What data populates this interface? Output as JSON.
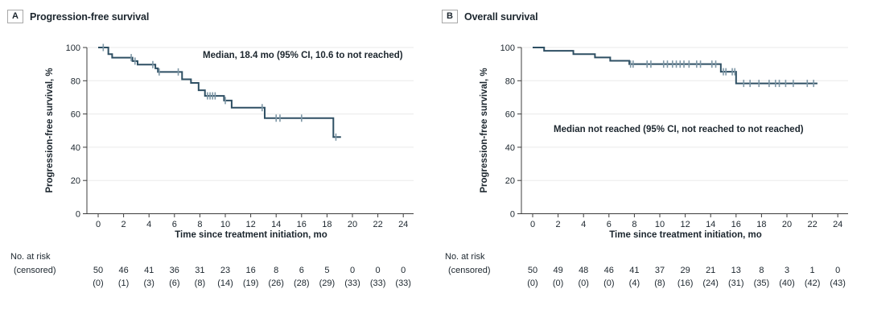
{
  "chart_data": [
    {
      "type": "line",
      "subtype": "kaplan-meier-step",
      "panel_label": "A",
      "title": "Progression-free survival",
      "annotation": "Median, 18.4 mo (95% CI, 10.6 to not reached)",
      "xlabel": "Time since treatment initiation, mo",
      "ylabel": "Progression-free survival, %",
      "xlim": [
        0,
        24
      ],
      "ylim": [
        0,
        100
      ],
      "x_ticks": [
        0,
        2,
        4,
        6,
        8,
        10,
        12,
        14,
        16,
        18,
        20,
        22,
        24
      ],
      "y_ticks": [
        0,
        20,
        40,
        60,
        80,
        100
      ],
      "grid": "horizontal",
      "legend": "none",
      "line_color": "#2e4f63",
      "censor_color": "#7e97a6",
      "steps": [
        [
          0,
          100
        ],
        [
          0.8,
          96.0
        ],
        [
          1.1,
          93.9
        ],
        [
          2.7,
          91.8
        ],
        [
          3.1,
          89.7
        ],
        [
          4.5,
          87.5
        ],
        [
          4.7,
          85.3
        ],
        [
          6.6,
          80.9
        ],
        [
          7.3,
          78.7
        ],
        [
          7.9,
          74.3
        ],
        [
          8.4,
          70.9
        ],
        [
          9.9,
          68.1
        ],
        [
          10.5,
          63.8
        ],
        [
          13.1,
          57.5
        ],
        [
          18.5,
          46.1
        ]
      ],
      "end_time": 19.1,
      "censors": [
        [
          0.4,
          100
        ],
        [
          2.6,
          93.9
        ],
        [
          2.9,
          91.8
        ],
        [
          4.3,
          89.7
        ],
        [
          4.8,
          85.3
        ],
        [
          6.3,
          85.3
        ],
        [
          8.6,
          70.9
        ],
        [
          8.8,
          70.9
        ],
        [
          9.0,
          70.9
        ],
        [
          9.2,
          70.9
        ],
        [
          10.0,
          68.1
        ],
        [
          12.9,
          63.8
        ],
        [
          14.0,
          57.5
        ],
        [
          14.3,
          57.5
        ],
        [
          16.0,
          57.5
        ],
        [
          18.7,
          46.1
        ]
      ],
      "at_risk_label": "No. at risk",
      "censored_label": "(censored)",
      "at_risk_times": [
        0,
        2,
        4,
        6,
        8,
        10,
        12,
        14,
        16,
        18,
        20,
        22,
        24
      ],
      "at_risk_n": [
        50,
        46,
        41,
        36,
        31,
        23,
        16,
        8,
        6,
        5,
        0,
        0,
        0
      ],
      "censored_n": [
        0,
        1,
        3,
        6,
        8,
        14,
        19,
        26,
        28,
        29,
        33,
        33,
        33
      ]
    },
    {
      "type": "line",
      "subtype": "kaplan-meier-step",
      "panel_label": "B",
      "title": "Overall survival",
      "annotation": "Median not reached (95% CI, not reached to not reached)",
      "xlabel": "Time since treatment initiation, mo",
      "ylabel": "Progression-free survival, %",
      "xlim": [
        0,
        24
      ],
      "ylim": [
        0,
        100
      ],
      "x_ticks": [
        0,
        2,
        4,
        6,
        8,
        10,
        12,
        14,
        16,
        18,
        20,
        22,
        24
      ],
      "y_ticks": [
        0,
        20,
        40,
        60,
        80,
        100
      ],
      "grid": "horizontal",
      "legend": "none",
      "line_color": "#2e4f63",
      "censor_color": "#7e97a6",
      "steps": [
        [
          0,
          100
        ],
        [
          0.9,
          98.0
        ],
        [
          3.2,
          96.0
        ],
        [
          4.9,
          94.0
        ],
        [
          6.1,
          92.0
        ],
        [
          7.6,
          90.0
        ],
        [
          14.8,
          85.4
        ],
        [
          16.0,
          78.4
        ]
      ],
      "end_time": 22.4,
      "censors": [
        [
          7.7,
          90
        ],
        [
          7.9,
          90
        ],
        [
          9.0,
          90
        ],
        [
          9.3,
          90
        ],
        [
          10.3,
          90
        ],
        [
          10.6,
          90
        ],
        [
          11.0,
          90
        ],
        [
          11.3,
          90
        ],
        [
          11.6,
          90
        ],
        [
          11.9,
          90
        ],
        [
          12.3,
          90
        ],
        [
          12.9,
          90
        ],
        [
          13.2,
          90
        ],
        [
          14.1,
          90
        ],
        [
          14.4,
          90
        ],
        [
          15.0,
          85.4
        ],
        [
          15.2,
          85.4
        ],
        [
          15.7,
          85.4
        ],
        [
          15.9,
          85.4
        ],
        [
          16.6,
          78.4
        ],
        [
          17.1,
          78.4
        ],
        [
          17.8,
          78.4
        ],
        [
          18.6,
          78.4
        ],
        [
          19.1,
          78.4
        ],
        [
          19.4,
          78.4
        ],
        [
          19.9,
          78.4
        ],
        [
          20.5,
          78.4
        ],
        [
          21.6,
          78.4
        ],
        [
          22.1,
          78.4
        ]
      ],
      "at_risk_label": "No. at risk",
      "censored_label": "(censored)",
      "at_risk_times": [
        0,
        2,
        4,
        6,
        8,
        10,
        12,
        14,
        16,
        18,
        20,
        22,
        24
      ],
      "at_risk_n": [
        50,
        49,
        48,
        46,
        41,
        37,
        29,
        21,
        13,
        8,
        3,
        1,
        0
      ],
      "censored_n": [
        0,
        0,
        0,
        0,
        4,
        8,
        16,
        24,
        31,
        35,
        40,
        42,
        43
      ]
    }
  ]
}
